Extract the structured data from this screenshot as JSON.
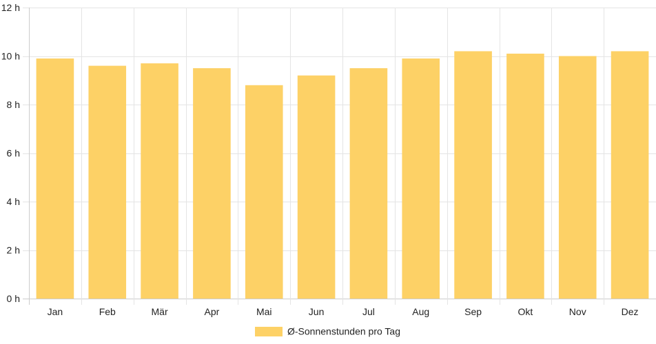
{
  "chart_data": {
    "type": "bar",
    "categories": [
      "Jan",
      "Feb",
      "Mär",
      "Apr",
      "Mai",
      "Jun",
      "Jul",
      "Aug",
      "Sep",
      "Okt",
      "Nov",
      "Dez"
    ],
    "series": [
      {
        "name": "Ø-Sonnenstunden pro Tag",
        "values": [
          9.9,
          9.6,
          9.7,
          9.5,
          8.8,
          9.2,
          9.5,
          9.9,
          10.2,
          10.1,
          10.0,
          10.2
        ],
        "color": "#fdd166"
      }
    ],
    "ylim": [
      0,
      12
    ],
    "yticks": [
      0,
      2,
      4,
      6,
      8,
      10,
      12
    ],
    "ytick_unit": "h",
    "grid": true,
    "legend_position": "bottom",
    "colors": {
      "grid": "#e4e4e4",
      "axis": "#cccccc",
      "bar": "#fdd166"
    }
  }
}
